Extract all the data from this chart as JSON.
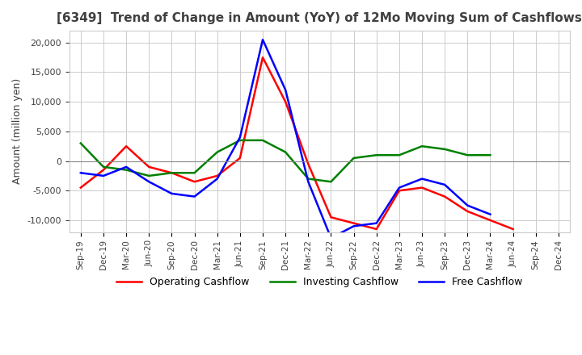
{
  "title": "[6349]  Trend of Change in Amount (YoY) of 12Mo Moving Sum of Cashflows",
  "ylabel": "Amount (million yen)",
  "x_labels": [
    "Sep-19",
    "Dec-19",
    "Mar-20",
    "Jun-20",
    "Sep-20",
    "Dec-20",
    "Mar-21",
    "Jun-21",
    "Sep-21",
    "Dec-21",
    "Mar-22",
    "Jun-22",
    "Sep-22",
    "Dec-22",
    "Mar-23",
    "Jun-23",
    "Sep-23",
    "Dec-23",
    "Mar-24",
    "Jun-24",
    "Sep-24",
    "Dec-24"
  ],
  "operating": [
    -4500,
    -1500,
    2500,
    -1000,
    -2000,
    -3500,
    -2500,
    500,
    17500,
    10000,
    -500,
    -9500,
    -10500,
    -11500,
    -5000,
    -4500,
    -6000,
    -8500,
    -10000,
    -11500,
    null,
    null
  ],
  "investing": [
    3000,
    -1000,
    -1500,
    -2500,
    -2000,
    -2000,
    1500,
    3500,
    3500,
    1500,
    -3000,
    -3500,
    500,
    1000,
    1000,
    2500,
    2000,
    1000,
    1000,
    null,
    null,
    null
  ],
  "free": [
    -2000,
    -2500,
    -1000,
    -3500,
    -5500,
    -6000,
    -3000,
    4000,
    20500,
    12000,
    -3500,
    -13000,
    -11000,
    -10500,
    -4500,
    -3000,
    -4000,
    -7500,
    -9000,
    null,
    null,
    null
  ],
  "ylim": [
    -12000,
    22000
  ],
  "yticks": [
    -10000,
    -5000,
    0,
    5000,
    10000,
    15000,
    20000
  ],
  "op_color": "#ff0000",
  "inv_color": "#008000",
  "free_color": "#0000ff",
  "grid_color": "#cccccc",
  "title_color": "#404040",
  "bg_color": "#ffffff"
}
